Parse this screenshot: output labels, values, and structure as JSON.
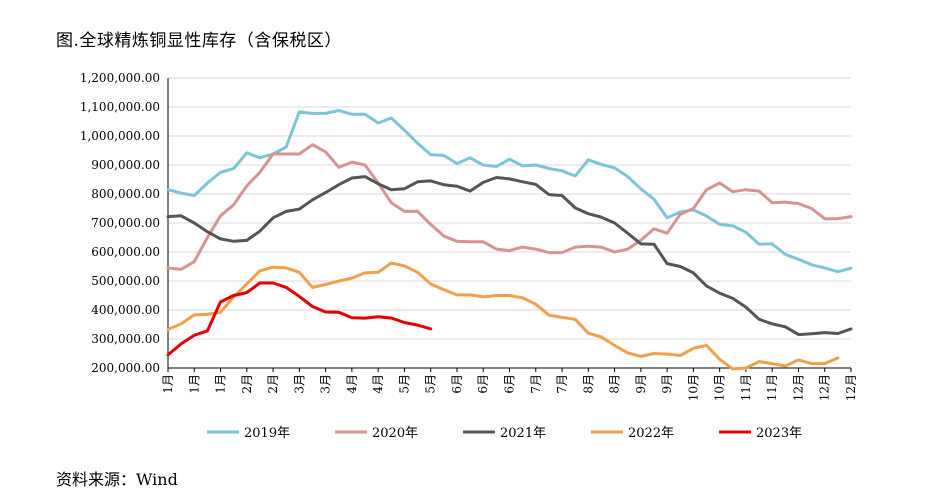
{
  "title": "图.全球精炼铜显性库存（含保税区）",
  "source": "资料来源：Wind",
  "chart_data": {
    "type": "line",
    "ylim": [
      200000,
      1200000
    ],
    "ytick_step": 100000,
    "yticks": [
      "200,000.00",
      "300,000.00",
      "400,000.00",
      "500,000.00",
      "600,000.00",
      "700,000.00",
      "800,000.00",
      "900,000.00",
      "1,000,000.00",
      "1,100,000.00",
      "1,200,000.00"
    ],
    "x_labels": [
      "1月",
      "1月",
      "1月",
      "2月",
      "2月",
      "3月",
      "3月",
      "4月",
      "4月",
      "5月",
      "5月",
      "6月",
      "6月",
      "6月",
      "7月",
      "7月",
      "8月",
      "8月",
      "9月",
      "9月",
      "10月",
      "10月",
      "11月",
      "11月",
      "12月",
      "12月",
      "12月"
    ],
    "n_points": 53,
    "legend_position": "bottom",
    "series": [
      {
        "name": "2019年",
        "color": "#7ec4d8",
        "values": [
          815000,
          803000,
          795000,
          838000,
          875000,
          888000,
          942000,
          925000,
          938000,
          962000,
          1083000,
          1078000,
          1078000,
          1088000,
          1075000,
          1075000,
          1045000,
          1062000,
          1020000,
          975000,
          935000,
          933000,
          905000,
          925000,
          900000,
          895000,
          920000,
          897000,
          900000,
          888000,
          880000,
          862000,
          918000,
          902000,
          890000,
          860000,
          818000,
          782000,
          718000,
          738000,
          745000,
          724000,
          695000,
          690000,
          668000,
          627000,
          628000,
          592000,
          575000,
          556000,
          545000,
          532000,
          544000
        ]
      },
      {
        "name": "2020年",
        "color": "#d99292",
        "values": [
          545000,
          540000,
          567000,
          650000,
          725000,
          763000,
          828000,
          875000,
          938000,
          938000,
          938000,
          970000,
          945000,
          892000,
          910000,
          900000,
          838000,
          770000,
          740000,
          740000,
          695000,
          655000,
          637000,
          635000,
          635000,
          610000,
          605000,
          617000,
          610000,
          598000,
          598000,
          617000,
          620000,
          617000,
          600000,
          610000,
          640000,
          680000,
          665000,
          730000,
          750000,
          815000,
          838000,
          808000,
          815000,
          810000,
          770000,
          772000,
          767000,
          750000,
          715000,
          715000,
          722000
        ]
      },
      {
        "name": "2021年",
        "color": "#555555",
        "values": [
          722000,
          725000,
          700000,
          670000,
          645000,
          637000,
          640000,
          672000,
          718000,
          740000,
          748000,
          780000,
          805000,
          832000,
          855000,
          860000,
          835000,
          815000,
          818000,
          842000,
          845000,
          832000,
          827000,
          810000,
          840000,
          857000,
          852000,
          842000,
          833000,
          798000,
          795000,
          752000,
          732000,
          720000,
          700000,
          665000,
          628000,
          627000,
          560000,
          550000,
          528000,
          483000,
          458000,
          440000,
          410000,
          368000,
          352000,
          342000,
          315000,
          318000,
          322000,
          319000,
          335000
        ]
      },
      {
        "name": "2022年",
        "color": "#f0a04b",
        "values": [
          333000,
          352000,
          383000,
          385000,
          392000,
          445000,
          490000,
          535000,
          548000,
          545000,
          530000,
          478000,
          488000,
          500000,
          510000,
          528000,
          530000,
          562000,
          552000,
          530000,
          490000,
          470000,
          452000,
          452000,
          445000,
          450000,
          450000,
          442000,
          420000,
          382000,
          375000,
          368000,
          320000,
          307000,
          278000,
          252000,
          240000,
          250000,
          248000,
          243000,
          268000,
          278000,
          230000,
          197000,
          200000,
          222000,
          215000,
          207000,
          228000,
          215000,
          215000,
          235000
        ]
      },
      {
        "name": "2023年",
        "color": "#e60000",
        "values": [
          245000,
          283000,
          313000,
          328000,
          428000,
          450000,
          460000,
          493000,
          493000,
          478000,
          447000,
          412000,
          393000,
          392000,
          373000,
          372000,
          377000,
          372000,
          357000,
          348000,
          335000
        ]
      }
    ]
  }
}
